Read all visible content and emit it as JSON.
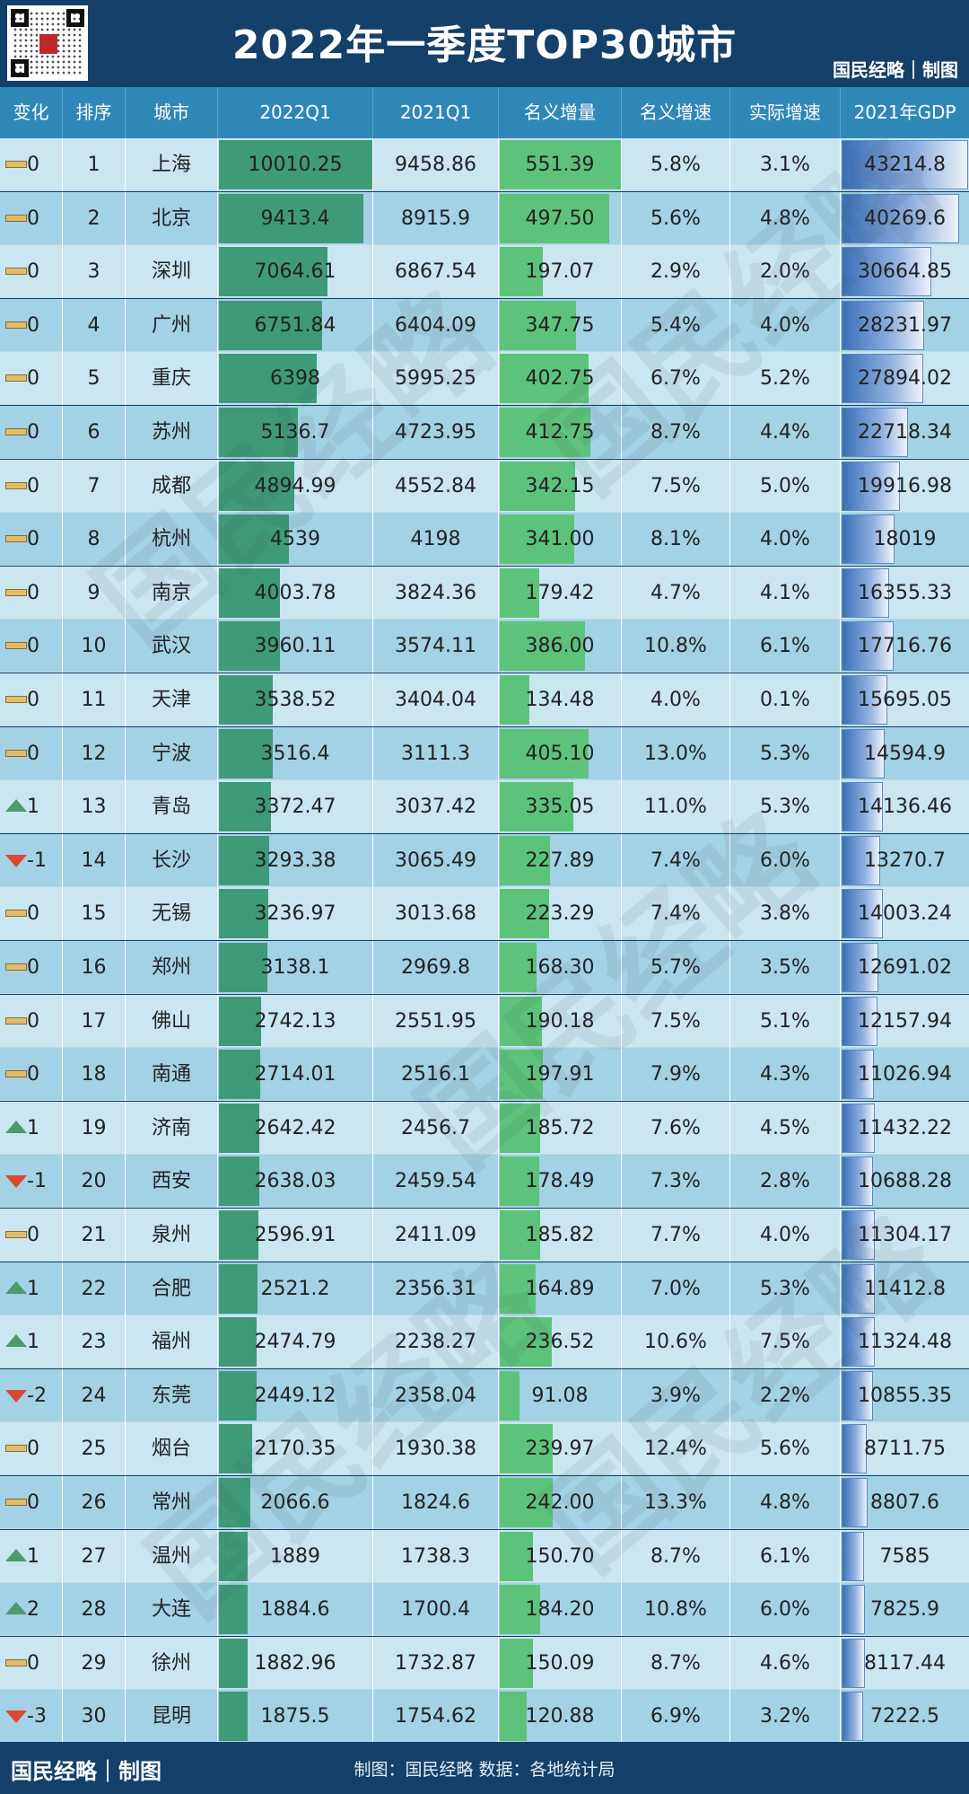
{
  "title": "2022年一季度TOP30城市",
  "brand": "国民经略｜制图",
  "watermark_text": "国民经略",
  "footer": {
    "brand": "国民经略｜制图",
    "source": "制图：国民经略 数据：各地统计局"
  },
  "colors": {
    "header_bg": "#14406a",
    "column_header_bg": "#2f87b7",
    "q1_bar": "#3f9a78",
    "increase_bar": "#5dc37b",
    "gdp_bar": "#3b6fb6",
    "row_odd": "#c9e6f1",
    "row_even": "#a3d1e5",
    "up": "#4e9a6a",
    "down": "#d9482f",
    "flat": "#e0bd6b"
  },
  "chart_data": {
    "type": "table",
    "title": "2022年一季度TOP30城市",
    "columns": [
      "变化",
      "排序",
      "城市",
      "2022Q1",
      "2021Q1",
      "名义增量",
      "名义增速",
      "实际增速",
      "2021年GDP"
    ],
    "rows": [
      {
        "change": "0",
        "dir": "flat",
        "rank": "1",
        "city": "上海",
        "q1_2022": "10010.25",
        "q1_2021": "9458.86",
        "increase": "551.39",
        "nominal": "5.8%",
        "real": "3.1%",
        "gdp2021": "43214.8"
      },
      {
        "change": "0",
        "dir": "flat",
        "rank": "2",
        "city": "北京",
        "q1_2022": "9413.4",
        "q1_2021": "8915.9",
        "increase": "497.50",
        "nominal": "5.6%",
        "real": "4.8%",
        "gdp2021": "40269.6"
      },
      {
        "change": "0",
        "dir": "flat",
        "rank": "3",
        "city": "深圳",
        "q1_2022": "7064.61",
        "q1_2021": "6867.54",
        "increase": "197.07",
        "nominal": "2.9%",
        "real": "2.0%",
        "gdp2021": "30664.85"
      },
      {
        "change": "0",
        "dir": "flat",
        "rank": "4",
        "city": "广州",
        "q1_2022": "6751.84",
        "q1_2021": "6404.09",
        "increase": "347.75",
        "nominal": "5.4%",
        "real": "4.0%",
        "gdp2021": "28231.97"
      },
      {
        "change": "0",
        "dir": "flat",
        "rank": "5",
        "city": "重庆",
        "q1_2022": "6398",
        "q1_2021": "5995.25",
        "increase": "402.75",
        "nominal": "6.7%",
        "real": "5.2%",
        "gdp2021": "27894.02"
      },
      {
        "change": "0",
        "dir": "flat",
        "rank": "6",
        "city": "苏州",
        "q1_2022": "5136.7",
        "q1_2021": "4723.95",
        "increase": "412.75",
        "nominal": "8.7%",
        "real": "4.4%",
        "gdp2021": "22718.34"
      },
      {
        "change": "0",
        "dir": "flat",
        "rank": "7",
        "city": "成都",
        "q1_2022": "4894.99",
        "q1_2021": "4552.84",
        "increase": "342.15",
        "nominal": "7.5%",
        "real": "5.0%",
        "gdp2021": "19916.98"
      },
      {
        "change": "0",
        "dir": "flat",
        "rank": "8",
        "city": "杭州",
        "q1_2022": "4539",
        "q1_2021": "4198",
        "increase": "341.00",
        "nominal": "8.1%",
        "real": "4.0%",
        "gdp2021": "18019"
      },
      {
        "change": "0",
        "dir": "flat",
        "rank": "9",
        "city": "南京",
        "q1_2022": "4003.78",
        "q1_2021": "3824.36",
        "increase": "179.42",
        "nominal": "4.7%",
        "real": "4.1%",
        "gdp2021": "16355.33"
      },
      {
        "change": "0",
        "dir": "flat",
        "rank": "10",
        "city": "武汉",
        "q1_2022": "3960.11",
        "q1_2021": "3574.11",
        "increase": "386.00",
        "nominal": "10.8%",
        "real": "6.1%",
        "gdp2021": "17716.76"
      },
      {
        "change": "0",
        "dir": "flat",
        "rank": "11",
        "city": "天津",
        "q1_2022": "3538.52",
        "q1_2021": "3404.04",
        "increase": "134.48",
        "nominal": "4.0%",
        "real": "0.1%",
        "gdp2021": "15695.05"
      },
      {
        "change": "0",
        "dir": "flat",
        "rank": "12",
        "city": "宁波",
        "q1_2022": "3516.4",
        "q1_2021": "3111.3",
        "increase": "405.10",
        "nominal": "13.0%",
        "real": "5.3%",
        "gdp2021": "14594.9"
      },
      {
        "change": "1",
        "dir": "up",
        "rank": "13",
        "city": "青岛",
        "q1_2022": "3372.47",
        "q1_2021": "3037.42",
        "increase": "335.05",
        "nominal": "11.0%",
        "real": "5.3%",
        "gdp2021": "14136.46"
      },
      {
        "change": "-1",
        "dir": "down",
        "rank": "14",
        "city": "长沙",
        "q1_2022": "3293.38",
        "q1_2021": "3065.49",
        "increase": "227.89",
        "nominal": "7.4%",
        "real": "6.0%",
        "gdp2021": "13270.7"
      },
      {
        "change": "0",
        "dir": "flat",
        "rank": "15",
        "city": "无锡",
        "q1_2022": "3236.97",
        "q1_2021": "3013.68",
        "increase": "223.29",
        "nominal": "7.4%",
        "real": "3.8%",
        "gdp2021": "14003.24"
      },
      {
        "change": "0",
        "dir": "flat",
        "rank": "16",
        "city": "郑州",
        "q1_2022": "3138.1",
        "q1_2021": "2969.8",
        "increase": "168.30",
        "nominal": "5.7%",
        "real": "3.5%",
        "gdp2021": "12691.02"
      },
      {
        "change": "0",
        "dir": "flat",
        "rank": "17",
        "city": "佛山",
        "q1_2022": "2742.13",
        "q1_2021": "2551.95",
        "increase": "190.18",
        "nominal": "7.5%",
        "real": "5.1%",
        "gdp2021": "12157.94"
      },
      {
        "change": "0",
        "dir": "flat",
        "rank": "18",
        "city": "南通",
        "q1_2022": "2714.01",
        "q1_2021": "2516.1",
        "increase": "197.91",
        "nominal": "7.9%",
        "real": "4.3%",
        "gdp2021": "11026.94"
      },
      {
        "change": "1",
        "dir": "up",
        "rank": "19",
        "city": "济南",
        "q1_2022": "2642.42",
        "q1_2021": "2456.7",
        "increase": "185.72",
        "nominal": "7.6%",
        "real": "4.5%",
        "gdp2021": "11432.22"
      },
      {
        "change": "-1",
        "dir": "down",
        "rank": "20",
        "city": "西安",
        "q1_2022": "2638.03",
        "q1_2021": "2459.54",
        "increase": "178.49",
        "nominal": "7.3%",
        "real": "2.8%",
        "gdp2021": "10688.28"
      },
      {
        "change": "0",
        "dir": "flat",
        "rank": "21",
        "city": "泉州",
        "q1_2022": "2596.91",
        "q1_2021": "2411.09",
        "increase": "185.82",
        "nominal": "7.7%",
        "real": "4.0%",
        "gdp2021": "11304.17"
      },
      {
        "change": "1",
        "dir": "up",
        "rank": "22",
        "city": "合肥",
        "q1_2022": "2521.2",
        "q1_2021": "2356.31",
        "increase": "164.89",
        "nominal": "7.0%",
        "real": "5.3%",
        "gdp2021": "11412.8"
      },
      {
        "change": "1",
        "dir": "up",
        "rank": "23",
        "city": "福州",
        "q1_2022": "2474.79",
        "q1_2021": "2238.27",
        "increase": "236.52",
        "nominal": "10.6%",
        "real": "7.5%",
        "gdp2021": "11324.48"
      },
      {
        "change": "-2",
        "dir": "down",
        "rank": "24",
        "city": "东莞",
        "q1_2022": "2449.12",
        "q1_2021": "2358.04",
        "increase": "91.08",
        "nominal": "3.9%",
        "real": "2.2%",
        "gdp2021": "10855.35"
      },
      {
        "change": "0",
        "dir": "flat",
        "rank": "25",
        "city": "烟台",
        "q1_2022": "2170.35",
        "q1_2021": "1930.38",
        "increase": "239.97",
        "nominal": "12.4%",
        "real": "5.6%",
        "gdp2021": "8711.75"
      },
      {
        "change": "0",
        "dir": "flat",
        "rank": "26",
        "city": "常州",
        "q1_2022": "2066.6",
        "q1_2021": "1824.6",
        "increase": "242.00",
        "nominal": "13.3%",
        "real": "4.8%",
        "gdp2021": "8807.6"
      },
      {
        "change": "1",
        "dir": "up",
        "rank": "27",
        "city": "温州",
        "q1_2022": "1889",
        "q1_2021": "1738.3",
        "increase": "150.70",
        "nominal": "8.7%",
        "real": "6.1%",
        "gdp2021": "7585"
      },
      {
        "change": "2",
        "dir": "up",
        "rank": "28",
        "city": "大连",
        "q1_2022": "1884.6",
        "q1_2021": "1700.4",
        "increase": "184.20",
        "nominal": "10.8%",
        "real": "6.0%",
        "gdp2021": "7825.9"
      },
      {
        "change": "0",
        "dir": "flat",
        "rank": "29",
        "city": "徐州",
        "q1_2022": "1882.96",
        "q1_2021": "1732.87",
        "increase": "150.09",
        "nominal": "8.7%",
        "real": "4.6%",
        "gdp2021": "8117.44"
      },
      {
        "change": "-3",
        "dir": "down",
        "rank": "30",
        "city": "昆明",
        "q1_2022": "1875.5",
        "q1_2021": "1754.62",
        "increase": "120.88",
        "nominal": "6.9%",
        "real": "3.2%",
        "gdp2021": "7222.5"
      }
    ]
  }
}
